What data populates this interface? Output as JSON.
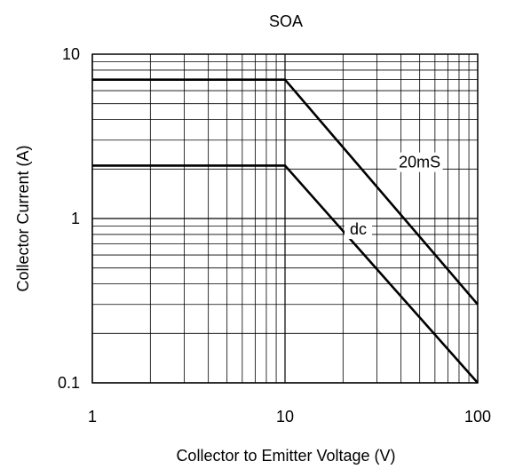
{
  "chart_data": {
    "type": "line",
    "title": "SOA",
    "xlabel": "Collector to Emitter Voltage (V)",
    "ylabel": "Collector Current (A)",
    "x_scale": "log",
    "y_scale": "log",
    "xlim": [
      1,
      100
    ],
    "ylim": [
      0.1,
      10
    ],
    "x_ticks": [
      {
        "value": 1,
        "label": "1"
      },
      {
        "value": 10,
        "label": "10"
      },
      {
        "value": 100,
        "label": "100"
      }
    ],
    "y_ticks": [
      {
        "value": 0.1,
        "label": "0.1"
      },
      {
        "value": 1,
        "label": "1"
      },
      {
        "value": 10,
        "label": "10"
      }
    ],
    "grid": true,
    "series": [
      {
        "name": "20mS",
        "x": [
          1,
          10,
          100
        ],
        "y": [
          7,
          7,
          0.3
        ]
      },
      {
        "name": "dc",
        "x": [
          1,
          10,
          100
        ],
        "y": [
          2.1,
          2.1,
          0.1
        ]
      }
    ],
    "annotations": [
      {
        "text": "20mS",
        "x": 50,
        "y": 2.2
      },
      {
        "text": "dc",
        "x": 24,
        "y": 0.86
      }
    ],
    "colors": {
      "line": "#000000",
      "grid": "#000000",
      "background": "#ffffff"
    }
  }
}
